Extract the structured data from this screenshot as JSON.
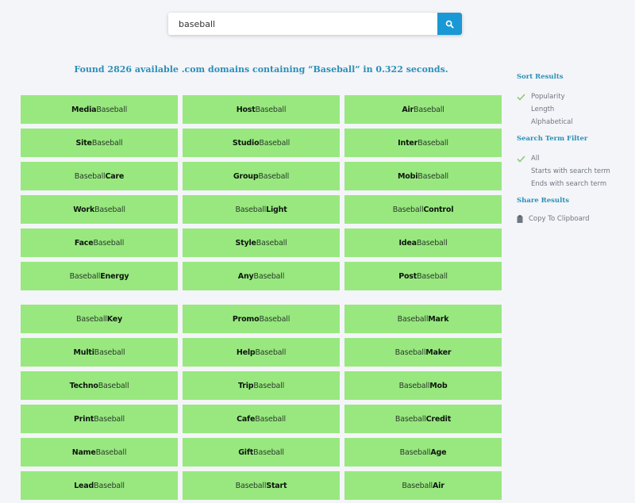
{
  "search": {
    "value": "baseball",
    "button_icon": "search-icon",
    "button_color": "#1a98d5"
  },
  "summary": {
    "text": "Found 2826 available .com domains containing “Baseball” in 0.322 seconds.",
    "count": 2826,
    "tld": ".com",
    "term": "Baseball",
    "seconds": 0.322
  },
  "colors": {
    "cell_bg": "#98e87f",
    "accent": "#2b8fb9",
    "check": "#8cc97a"
  },
  "results": {
    "block1": [
      {
        "bold": "Media",
        "normal": "Baseball",
        "order": "prefix"
      },
      {
        "bold": "Host",
        "normal": "Baseball",
        "order": "prefix"
      },
      {
        "bold": "Air",
        "normal": "Baseball",
        "order": "prefix"
      },
      {
        "bold": "Site",
        "normal": "Baseball",
        "order": "prefix"
      },
      {
        "bold": "Studio",
        "normal": "Baseball",
        "order": "prefix"
      },
      {
        "bold": "Inter",
        "normal": "Baseball",
        "order": "prefix"
      },
      {
        "bold": "Care",
        "normal": "Baseball",
        "order": "suffix"
      },
      {
        "bold": "Group",
        "normal": "Baseball",
        "order": "prefix"
      },
      {
        "bold": "Mobi",
        "normal": "Baseball",
        "order": "prefix"
      },
      {
        "bold": "Work",
        "normal": "Baseball",
        "order": "prefix"
      },
      {
        "bold": "Light",
        "normal": "Baseball",
        "order": "suffix"
      },
      {
        "bold": "Control",
        "normal": "Baseball",
        "order": "suffix"
      },
      {
        "bold": "Face",
        "normal": "Baseball",
        "order": "prefix"
      },
      {
        "bold": "Style",
        "normal": "Baseball",
        "order": "prefix"
      },
      {
        "bold": "Idea",
        "normal": "Baseball",
        "order": "prefix"
      },
      {
        "bold": "Energy",
        "normal": "Baseball",
        "order": "suffix"
      },
      {
        "bold": "Any",
        "normal": "Baseball",
        "order": "prefix"
      },
      {
        "bold": "Post",
        "normal": "Baseball",
        "order": "prefix"
      }
    ],
    "block2": [
      {
        "bold": "Key",
        "normal": "Baseball",
        "order": "suffix"
      },
      {
        "bold": "Promo",
        "normal": "Baseball",
        "order": "prefix"
      },
      {
        "bold": "Mark",
        "normal": "Baseball",
        "order": "suffix"
      },
      {
        "bold": "Multi",
        "normal": "Baseball",
        "order": "prefix"
      },
      {
        "bold": "Help",
        "normal": "Baseball",
        "order": "prefix"
      },
      {
        "bold": "Maker",
        "normal": "Baseball",
        "order": "suffix"
      },
      {
        "bold": "Techno",
        "normal": "Baseball",
        "order": "prefix"
      },
      {
        "bold": "Trip",
        "normal": "Baseball",
        "order": "prefix"
      },
      {
        "bold": "Mob",
        "normal": "Baseball",
        "order": "suffix"
      },
      {
        "bold": "Print",
        "normal": "Baseball",
        "order": "prefix"
      },
      {
        "bold": "Cafe",
        "normal": "Baseball",
        "order": "prefix"
      },
      {
        "bold": "Credit",
        "normal": "Baseball",
        "order": "suffix"
      },
      {
        "bold": "Name",
        "normal": "Baseball",
        "order": "prefix"
      },
      {
        "bold": "Gift",
        "normal": "Baseball",
        "order": "prefix"
      },
      {
        "bold": "Age",
        "normal": "Baseball",
        "order": "suffix"
      },
      {
        "bold": "Lead",
        "normal": "Baseball",
        "order": "prefix"
      },
      {
        "bold": "Start",
        "normal": "Baseball",
        "order": "suffix"
      },
      {
        "bold": "Air",
        "normal": "Baseball",
        "order": "suffix"
      }
    ]
  },
  "sidebar": {
    "sort": {
      "heading": "Sort Results",
      "items": [
        {
          "label": "Popularity",
          "checked": true
        },
        {
          "label": "Length",
          "checked": false
        },
        {
          "label": "Alphabetical",
          "checked": false
        }
      ]
    },
    "filter": {
      "heading": "Search Term Filter",
      "items": [
        {
          "label": "All",
          "checked": true
        },
        {
          "label": "Starts with search term",
          "checked": false
        },
        {
          "label": "Ends with search term",
          "checked": false
        }
      ]
    },
    "share": {
      "heading": "Share Results",
      "copy_label": "Copy To Clipboard",
      "copy_icon": "clipboard-icon"
    }
  }
}
